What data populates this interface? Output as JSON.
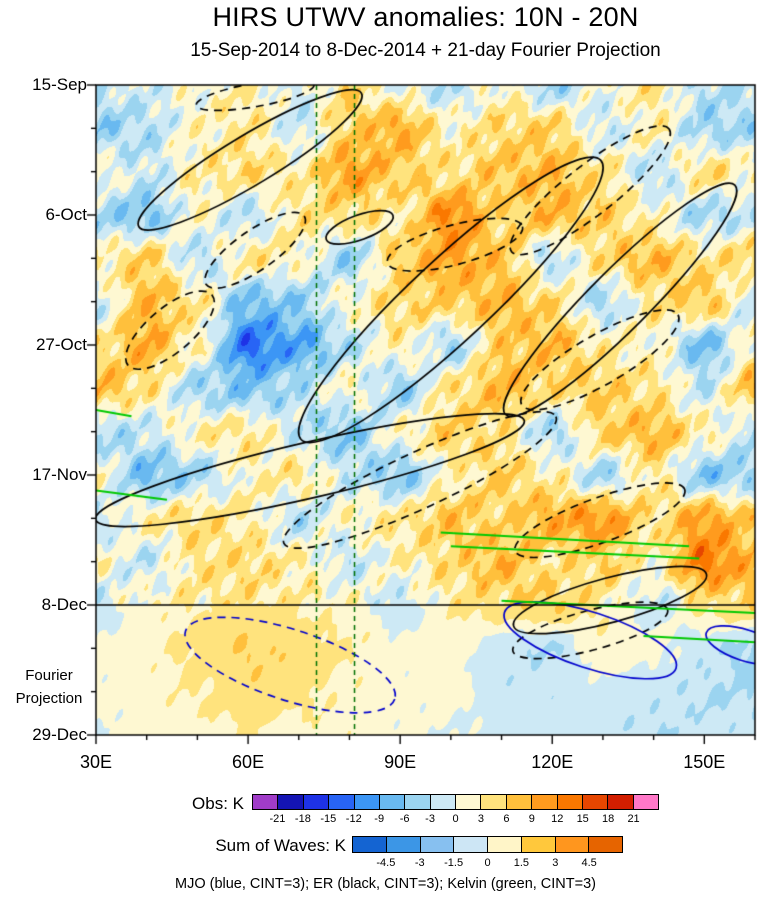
{
  "title": "HIRS UTWV anomalies: 10N - 20N",
  "subtitle": "15-Sep-2014 to 8-Dec-2014 + 21-day Fourier Projection",
  "caption": "MJO (blue, CINT=3); ER (black, CINT=3); Kelvin (green, CINT=3)",
  "colorbars": {
    "obs": {
      "label": "Obs: K",
      "ticks": [
        -21,
        -18,
        -15,
        -12,
        -9,
        -6,
        -3,
        0,
        3,
        6,
        9,
        12,
        15,
        18,
        21
      ],
      "colors": [
        "#A03CC8",
        "#1414B4",
        "#1E32E6",
        "#2864F5",
        "#3C96F5",
        "#69B9F0",
        "#9BD4F0",
        "#CDE9F5",
        "#FEF8D2",
        "#FFE37D",
        "#FFC03C",
        "#FF9B1E",
        "#FA7800",
        "#E64600",
        "#D21E00",
        "#FF78C8"
      ]
    },
    "waves": {
      "label": "Sum of Waves: K",
      "ticks": [
        -4.5,
        -3,
        -1.5,
        0,
        1.5,
        3,
        4.5
      ],
      "colors": [
        "#1464D2",
        "#3C96E6",
        "#87C0F0",
        "#CDE6F5",
        "#FFF5C8",
        "#FFC83C",
        "#FF961E",
        "#E66400"
      ]
    }
  },
  "chart_data": {
    "type": "heatmap",
    "title": "HIRS UTWV anomalies: 10N - 20N",
    "subtitle": "15-Sep-2014 to 8-Dec-2014 + 21-day Fourier Projection",
    "x_tick_labels": [
      "30E",
      "60E",
      "90E",
      "120E",
      "150E"
    ],
    "x_tick_lons": [
      30,
      60,
      90,
      120,
      150
    ],
    "x_range": [
      30,
      160
    ],
    "minor_x_step": 10,
    "y_tick_labels": [
      "15-Sep",
      "6-Oct",
      "27-Oct",
      "17-Nov",
      "8-Dec",
      "29-Dec"
    ],
    "y_tick_days": [
      0,
      21,
      42,
      63,
      84,
      105
    ],
    "y_range_days": [
      0,
      105
    ],
    "minor_y_step": 7,
    "fill_levels_K": {
      "start": -21,
      "end": 21,
      "step": 3
    },
    "contour_interval_K": 3,
    "grid": {
      "lons": [
        30,
        40,
        50,
        60,
        70,
        80,
        90,
        100,
        110,
        120,
        130,
        140,
        150,
        160
      ],
      "days": [
        0,
        7,
        14,
        21,
        28,
        35,
        42,
        49,
        56,
        63,
        70,
        77,
        84,
        91,
        98,
        105
      ],
      "values_K": [
        [
          -2,
          -1,
          1,
          3,
          -1,
          5,
          0,
          -3,
          2,
          -4,
          1,
          4,
          -3,
          -2
        ],
        [
          -5,
          -3,
          2,
          4,
          -2,
          6,
          9,
          2,
          5,
          6,
          -2,
          3,
          -4,
          -4
        ],
        [
          2,
          -2,
          3,
          5,
          3,
          10,
          6,
          4,
          7,
          8,
          4,
          -3,
          5,
          2
        ],
        [
          -4,
          -6,
          2,
          -3,
          4,
          5,
          3,
          12,
          5,
          8,
          6,
          2,
          -4,
          -2
        ],
        [
          3,
          6,
          -3,
          4,
          2,
          -5,
          6,
          10,
          7,
          -3,
          5,
          8,
          4,
          6
        ],
        [
          -2,
          8,
          4,
          -7,
          -5,
          2,
          5,
          6,
          8,
          5,
          -4,
          4,
          7,
          -2
        ],
        [
          4,
          9,
          2,
          -13,
          -9,
          -3,
          3,
          -4,
          6,
          8,
          3,
          2,
          -7,
          3
        ],
        [
          8,
          4,
          -4,
          -6,
          -3,
          2,
          -5,
          4,
          8,
          5,
          6,
          4,
          -2,
          8
        ],
        [
          -4,
          -2,
          3,
          4,
          -2,
          -6,
          2,
          6,
          4,
          -4,
          6,
          8,
          3,
          -3
        ],
        [
          2,
          -7,
          -4,
          2,
          4,
          -2,
          -6,
          2,
          6,
          3,
          -4,
          4,
          -6,
          -4
        ],
        [
          -2,
          3,
          5,
          3,
          -3,
          2,
          4,
          7,
          5,
          9,
          11,
          4,
          10,
          6
        ],
        [
          2,
          -2,
          4,
          5,
          3,
          -2,
          2,
          5,
          8,
          4,
          6,
          2,
          13,
          8
        ],
        [
          -2,
          2,
          3,
          4,
          3,
          2,
          -2,
          3,
          5,
          6,
          3,
          -2,
          4,
          6
        ],
        [
          1,
          2,
          4,
          6,
          5,
          3,
          1,
          2,
          -2,
          -3,
          2,
          1,
          -2,
          -4
        ],
        [
          1,
          2,
          3,
          5,
          4,
          2,
          1,
          1,
          -2,
          -2,
          -1,
          -2,
          -3,
          -3
        ],
        [
          0,
          1,
          2,
          3,
          2,
          2,
          1,
          0,
          -1,
          -2,
          -2,
          -3,
          -2,
          -2
        ]
      ]
    },
    "annotations": {
      "vertical_dashed_lines_lon": [
        73.5,
        81
      ],
      "vertical_line_color": "#007000",
      "projection_start_line_day": 84,
      "fourier_projection_label": "Fourier Projection"
    },
    "wave_contours": {
      "er": {
        "name": "ER",
        "color": "#000000",
        "cint_K": 3,
        "ellipses": [
          {
            "lon": 60.4,
            "day": 12.1,
            "rlon": 25.6,
            "rday": 4.0,
            "rot_deg": -31,
            "style": "solid"
          },
          {
            "lon": 100,
            "day": 34.7,
            "rlon": 40.4,
            "rday": 6.5,
            "rot_deg": -43,
            "style": "solid"
          },
          {
            "lon": 133.4,
            "day": 34.7,
            "rlon": 32,
            "rday": 4.8,
            "rot_deg": -45,
            "style": "solid"
          },
          {
            "lon": 72.2,
            "day": 62.2,
            "rlon": 43.4,
            "rday": 4.5,
            "rot_deg": -13,
            "style": "solid"
          },
          {
            "lon": 131.4,
            "day": 83.2,
            "rlon": 19.7,
            "rday": 3.6,
            "rot_deg": -15,
            "style": "solid"
          },
          {
            "lon": 82,
            "day": 23,
            "rlon": 7,
            "rday": 2,
            "rot_deg": -20,
            "style": "solid"
          },
          {
            "lon": 61.4,
            "day": 1.6,
            "rlon": 11.8,
            "rday": 1.9,
            "rot_deg": -10,
            "style": "dashed"
          },
          {
            "lon": 61.4,
            "day": 26.7,
            "rlon": 11.8,
            "rday": 3.2,
            "rot_deg": -35,
            "style": "dashed"
          },
          {
            "lon": 44.6,
            "day": 39.6,
            "rlon": 10.8,
            "rday": 3.6,
            "rot_deg": -40,
            "style": "dashed"
          },
          {
            "lon": 100.8,
            "day": 25.8,
            "rlon": 13.8,
            "rday": 3.2,
            "rot_deg": -15,
            "style": "dashed"
          },
          {
            "lon": 127.5,
            "day": 17.0,
            "rlon": 19.7,
            "rday": 4.0,
            "rot_deg": -38,
            "style": "dashed"
          },
          {
            "lon": 129.4,
            "day": 44.4,
            "rlon": 17.8,
            "rday": 4.0,
            "rot_deg": -30,
            "style": "dashed"
          },
          {
            "lon": 93.9,
            "day": 63.8,
            "rlon": 29.6,
            "rday": 4.5,
            "rot_deg": -25,
            "style": "dashed"
          },
          {
            "lon": 129.4,
            "day": 70.3,
            "rlon": 17.8,
            "rday": 3.6,
            "rot_deg": -20,
            "style": "dashed"
          },
          {
            "lon": 127.5,
            "day": 88.1,
            "rlon": 15.8,
            "rday": 3.2,
            "rot_deg": -15,
            "style": "dashed"
          }
        ]
      },
      "mjo": {
        "name": "MJO",
        "color": "#0000CC",
        "cint_K": 3,
        "ellipses": [
          {
            "lon": 68.3,
            "day": 93.7,
            "rlon": 21.7,
            "rday": 5.7,
            "rot_deg": 18,
            "style": "dashed"
          },
          {
            "lon": 127.5,
            "day": 89.7,
            "rlon": 17.8,
            "rday": 4.5,
            "rot_deg": 18,
            "style": "solid"
          },
          {
            "lon": 158,
            "day": 90.5,
            "rlon": 8,
            "rday": 2.5,
            "rot_deg": 18,
            "style": "solid"
          }
        ]
      },
      "kelvin": {
        "name": "Kelvin",
        "color": "#00C800",
        "cint_K": 3,
        "segments": [
          {
            "from": [
              30,
              52.5
            ],
            "to": [
              37,
              53.5
            ]
          },
          {
            "from": [
              30,
              65.5
            ],
            "to": [
              44,
              67
            ]
          },
          {
            "from": [
              98,
              72.3
            ],
            "to": [
              147,
              74.5
            ]
          },
          {
            "from": [
              100,
              74.5
            ],
            "to": [
              149,
              76.5
            ]
          },
          {
            "from": [
              110,
              83.3
            ],
            "to": [
              160,
              85.3
            ]
          },
          {
            "from": [
              138,
              89
            ],
            "to": [
              160,
              90
            ]
          }
        ]
      }
    }
  }
}
